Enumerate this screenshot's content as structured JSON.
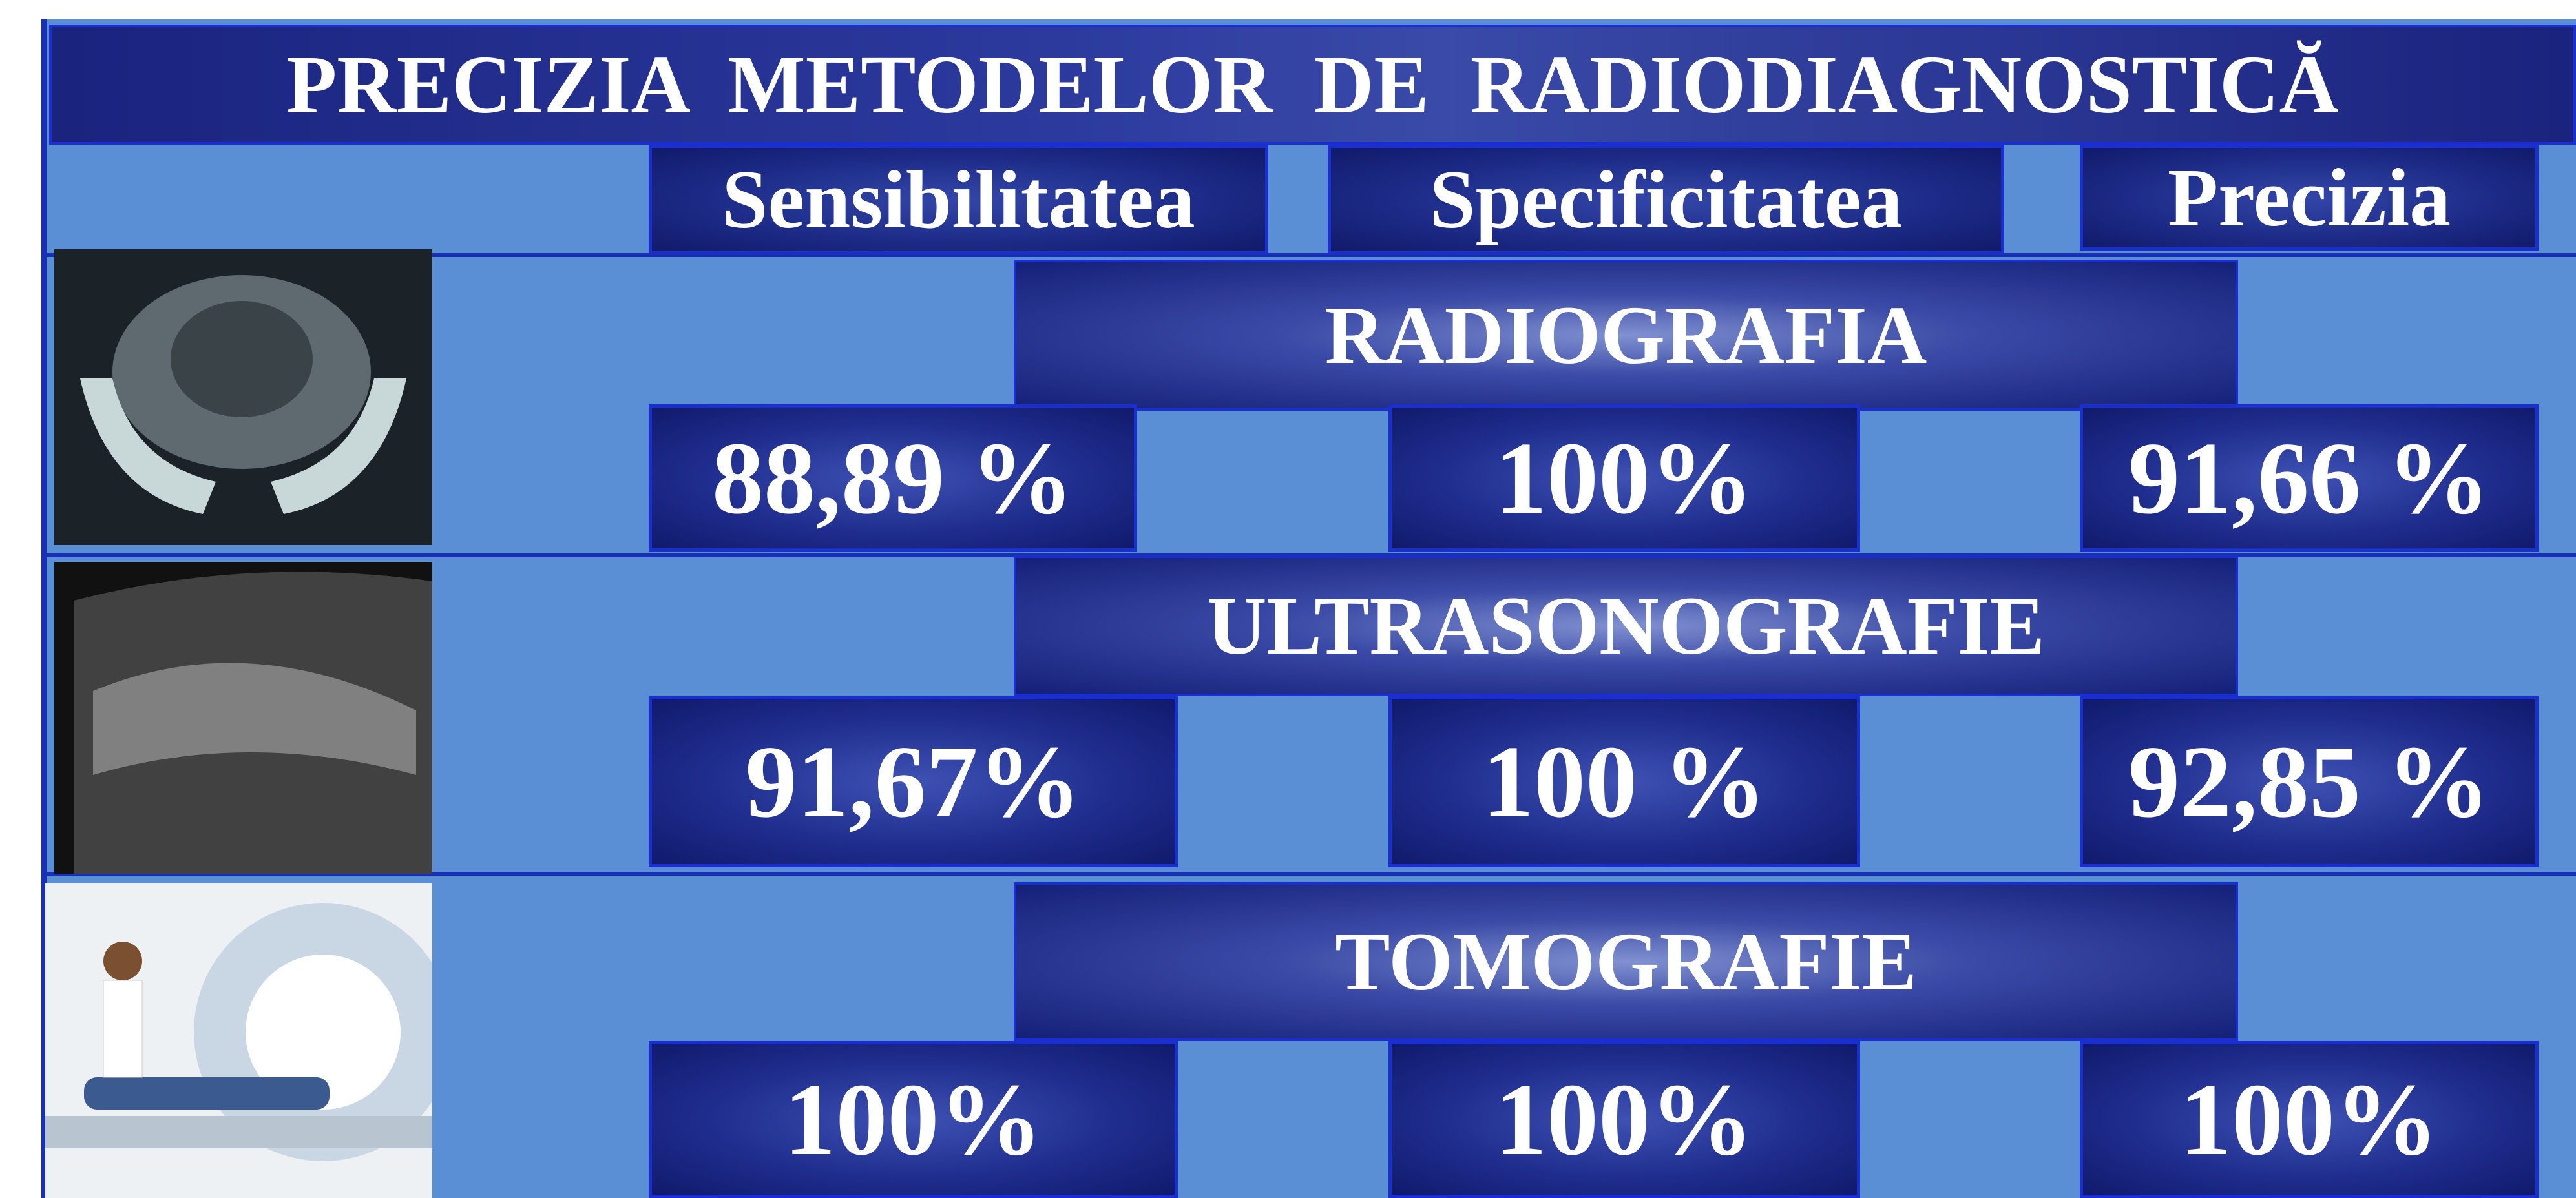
{
  "title": "PRECIZIA  METODELOR  DE  RADIODIAGNOSTICĂ",
  "columns": [
    "Sensibilitatea",
    "Specificitatea",
    "Precizia"
  ],
  "rows": [
    {
      "method": "RADIOGRAFIA",
      "values": [
        "88,89 %",
        "100%",
        "91,66 %"
      ]
    },
    {
      "method": "ULTRASONOGRAFIE",
      "values": [
        "91,67%",
        "100 %",
        "92,85 %"
      ]
    },
    {
      "method": "TOMOGRAFIE",
      "values": [
        "100%",
        "100%",
        "100%"
      ]
    }
  ]
}
